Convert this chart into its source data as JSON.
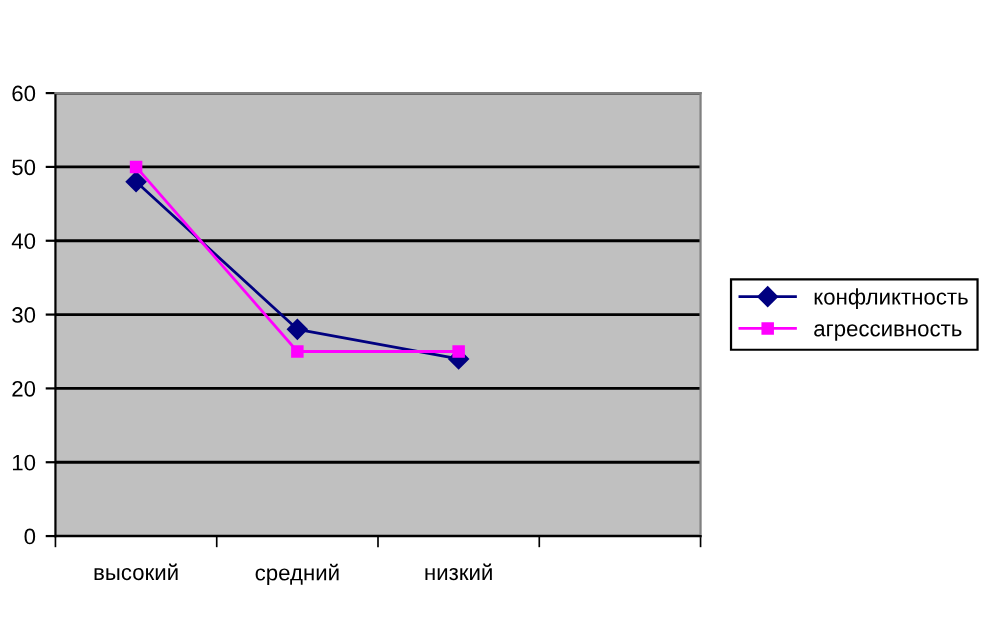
{
  "chart_data": {
    "type": "line",
    "categories": [
      "высокий",
      "средний",
      "низкий",
      null
    ],
    "series": [
      {
        "name": "конфликтность",
        "color": "#000080",
        "values": [
          48,
          28,
          24,
          null
        ],
        "marker": "diamond"
      },
      {
        "name": "агрессивность",
        "color": "#ff00ff",
        "values": [
          50,
          25,
          25,
          null
        ],
        "marker": "square"
      }
    ],
    "ylim": [
      0,
      60
    ],
    "yticks": [
      0,
      10,
      20,
      30,
      40,
      50,
      60
    ],
    "grid": "y",
    "legend": "right"
  }
}
